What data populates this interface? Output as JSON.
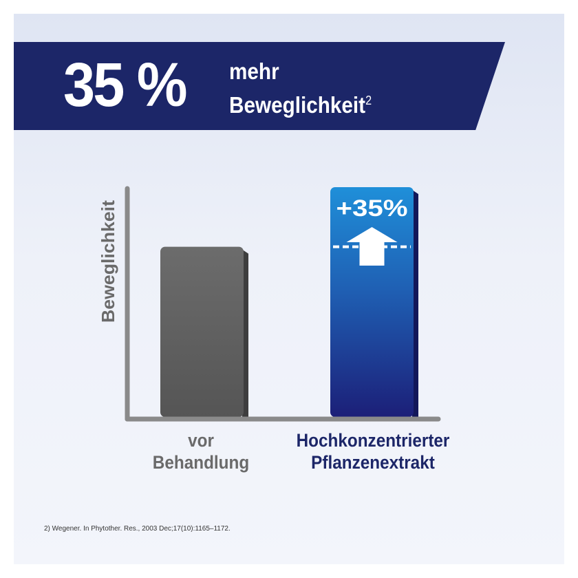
{
  "header": {
    "big_number": "35 %",
    "line1": "mehr",
    "line2": "Beweglichkeit",
    "superscript": "2"
  },
  "chart_data": {
    "type": "bar",
    "ylabel": "Beweglichkeit",
    "xlabel": "",
    "categories": [
      "vor Behandlung",
      "Hochkonzentrierter Pflanzenextrakt"
    ],
    "values": [
      100,
      135
    ],
    "ylim": [
      0,
      165
    ],
    "annotation": "+35%",
    "baseline_marker_value": 100,
    "grid": false,
    "legend": "none"
  },
  "labels": {
    "cat1_line1": "vor",
    "cat1_line2": "Behandlung",
    "cat2_line1": "Hochkonzentrierter",
    "cat2_line2": "Pflanzenextrakt"
  },
  "footnote": "2) Wegener. In Phytother. Res., 2003 Dec;17(10):1165–1172.",
  "colors": {
    "banner": "#1c2668",
    "bar_grey": "#5f5f5f",
    "bar_blue_top": "#1f8fd9",
    "bar_blue_bottom": "#1c1f78",
    "axis": "#8a8a8a"
  }
}
